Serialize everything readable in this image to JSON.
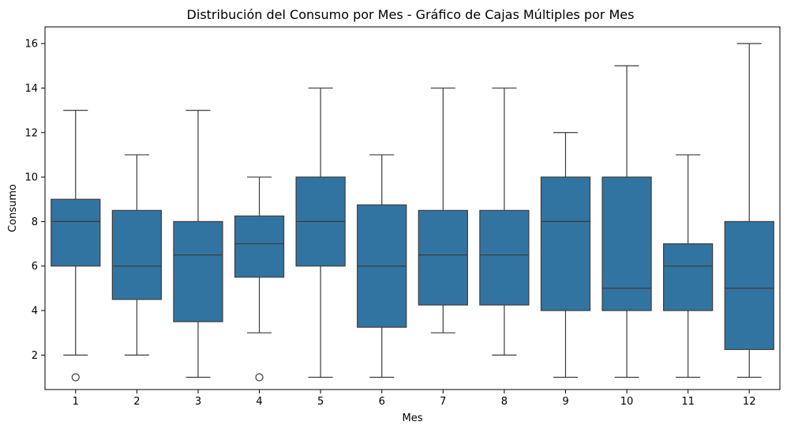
{
  "chart_data": {
    "type": "box",
    "title": "Distribución del Consumo por Mes - Gráfico de Cajas Múltiples por Mes",
    "xlabel": "Mes",
    "ylabel": "Consumo",
    "ylim": [
      0.45,
      16.75
    ],
    "yticks": [
      2,
      4,
      6,
      8,
      10,
      12,
      14,
      16
    ],
    "box_color": "#3274a1",
    "line_color": "#3d3d3d",
    "grid": false,
    "legend": false,
    "categories": [
      "1",
      "2",
      "3",
      "4",
      "5",
      "6",
      "7",
      "8",
      "9",
      "10",
      "11",
      "12"
    ],
    "boxes": [
      {
        "category": "1",
        "whisker_low": 2,
        "q1": 6,
        "median": 8,
        "q3": 9,
        "whisker_high": 13,
        "outliers": [
          1
        ]
      },
      {
        "category": "2",
        "whisker_low": 2,
        "q1": 4.5,
        "median": 6,
        "q3": 8.5,
        "whisker_high": 11,
        "outliers": []
      },
      {
        "category": "3",
        "whisker_low": 1,
        "q1": 3.5,
        "median": 6.5,
        "q3": 8,
        "whisker_high": 13,
        "outliers": []
      },
      {
        "category": "4",
        "whisker_low": 3,
        "q1": 5.5,
        "median": 7,
        "q3": 8.25,
        "whisker_high": 10,
        "outliers": [
          1
        ]
      },
      {
        "category": "5",
        "whisker_low": 1,
        "q1": 6,
        "median": 8,
        "q3": 10,
        "whisker_high": 14,
        "outliers": []
      },
      {
        "category": "6",
        "whisker_low": 1,
        "q1": 3.25,
        "median": 6,
        "q3": 8.75,
        "whisker_high": 11,
        "outliers": []
      },
      {
        "category": "7",
        "whisker_low": 3,
        "q1": 4.25,
        "median": 6.5,
        "q3": 8.5,
        "whisker_high": 14,
        "outliers": []
      },
      {
        "category": "8",
        "whisker_low": 2,
        "q1": 4.25,
        "median": 6.5,
        "q3": 8.5,
        "whisker_high": 14,
        "outliers": []
      },
      {
        "category": "9",
        "whisker_low": 1,
        "q1": 4,
        "median": 8,
        "q3": 10,
        "whisker_high": 12,
        "outliers": []
      },
      {
        "category": "10",
        "whisker_low": 1,
        "q1": 4,
        "median": 5,
        "q3": 10,
        "whisker_high": 15,
        "outliers": []
      },
      {
        "category": "11",
        "whisker_low": 1,
        "q1": 4,
        "median": 6,
        "q3": 7,
        "whisker_high": 11,
        "outliers": []
      },
      {
        "category": "12",
        "whisker_low": 1,
        "q1": 2.25,
        "median": 5,
        "q3": 8,
        "whisker_high": 16,
        "outliers": []
      }
    ]
  }
}
